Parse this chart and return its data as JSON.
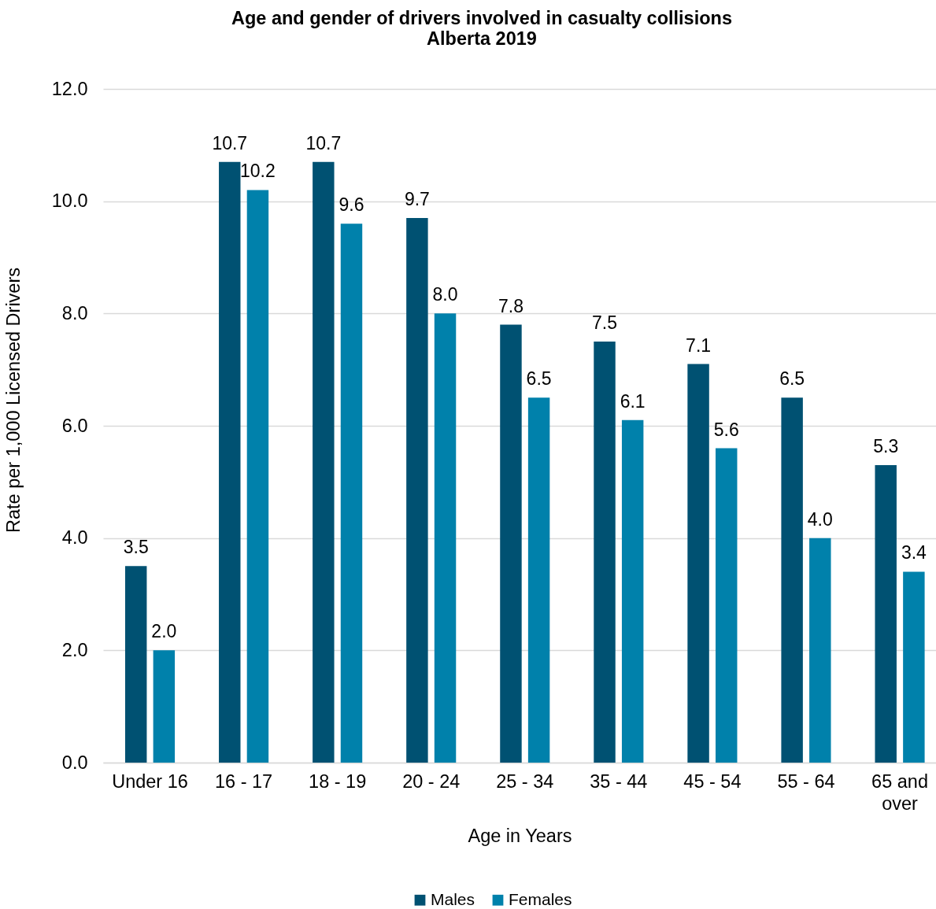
{
  "chart_data": {
    "type": "bar",
    "title": "Age and gender of drivers involved in casualty collisions",
    "subtitle": "Alberta 2019",
    "xlabel": "Age in Years",
    "ylabel": "Rate per 1,000 Licensed Drivers",
    "categories": [
      "Under 16",
      "16 - 17",
      "18 - 19",
      "20 - 24",
      "25 - 34",
      "35 - 44",
      "45 - 54",
      "55 - 64",
      "65 and over"
    ],
    "series": [
      {
        "name": "Males",
        "color": "#005172",
        "values": [
          3.5,
          10.7,
          10.7,
          9.7,
          7.8,
          7.5,
          7.1,
          6.5,
          5.3
        ],
        "value_labels": [
          "3.5",
          "10.7",
          "10.7",
          "9.7",
          "7.8",
          "7.5",
          "7.1",
          "6.5",
          "5.3"
        ]
      },
      {
        "name": "Females",
        "color": "#0081ab",
        "values": [
          2.0,
          10.2,
          9.6,
          8.0,
          6.5,
          6.1,
          5.6,
          4.0,
          3.4
        ],
        "value_labels": [
          "2.0",
          "10.2",
          "9.6",
          "8.0",
          "6.5",
          "6.1",
          "5.6",
          "4.0",
          "3.4"
        ]
      }
    ],
    "ylim": [
      0,
      12
    ],
    "yticks": [
      {
        "value": 0,
        "label": "0.0"
      },
      {
        "value": 2,
        "label": "2.0"
      },
      {
        "value": 4,
        "label": "4.0"
      },
      {
        "value": 6,
        "label": "6.0"
      },
      {
        "value": 8,
        "label": "8.0"
      },
      {
        "value": 10,
        "label": "10.0"
      },
      {
        "value": 12,
        "label": "12.0"
      }
    ],
    "grid": "y",
    "legend": "bottom"
  }
}
